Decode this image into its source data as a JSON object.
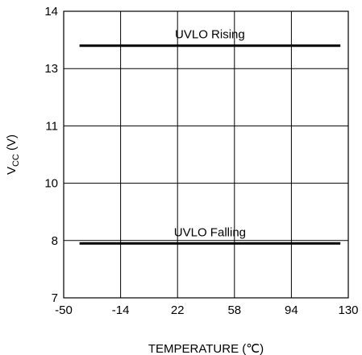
{
  "chart_data": {
    "type": "line",
    "title": "",
    "xlabel": "TEMPERATURE (℃)",
    "ylabel": {
      "main": "V",
      "sub": "CC",
      "unit": " (V)"
    },
    "xlim": [
      -50,
      130
    ],
    "ylim": [
      7,
      14
    ],
    "x_ticks": [
      -50,
      -14,
      22,
      58,
      94,
      130
    ],
    "y_ticks": [
      7,
      8,
      10,
      11,
      13,
      14
    ],
    "grid": true,
    "series": [
      {
        "name": "UVLO Rising",
        "x": [
          -40,
          125
        ],
        "y": [
          13.4,
          13.4
        ]
      },
      {
        "name": "UVLO Falling",
        "x": [
          -40,
          125
        ],
        "y": [
          7.95,
          7.95
        ]
      }
    ],
    "line_color": "#000000"
  }
}
